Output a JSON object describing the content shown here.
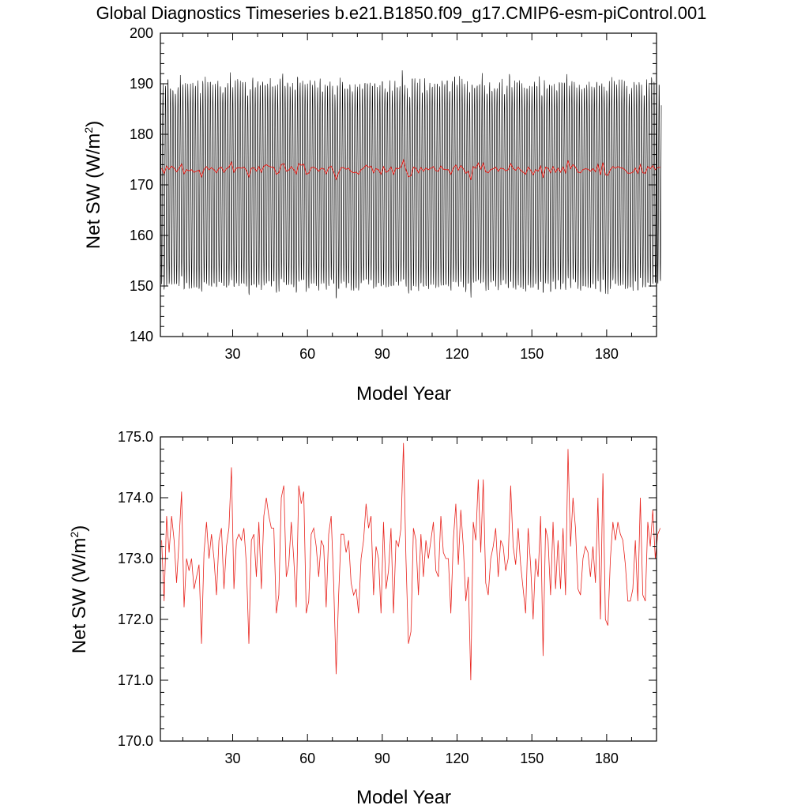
{
  "title": "Global Diagnostics Timeseries b.e21.B1850.f09_g17.CMIP6-esm-piControl.001",
  "colors": {
    "monthly": "#000000",
    "annual": "#e8231d",
    "axis": "#000000",
    "background": "#ffffff"
  },
  "chart_data": [
    {
      "type": "line",
      "title": "Global Diagnostics Timeseries b.e21.B1850.f09_g17.CMIP6-esm-piControl.001",
      "xlabel": "Model Year",
      "ylabel_main": "Net SW (W/m",
      "ylabel_sup": "2",
      "ylabel_tail": ")",
      "xlim": [
        1,
        200
      ],
      "ylim": [
        140,
        200
      ],
      "xticks": [
        30,
        60,
        90,
        120,
        150,
        180
      ],
      "xtick_labels": [
        "30",
        "60",
        "90",
        "120",
        "150",
        "180"
      ],
      "yticks": [
        140,
        150,
        160,
        170,
        180,
        190,
        200
      ],
      "ytick_labels": [
        "140",
        "150",
        "160",
        "170",
        "180",
        "190",
        "200"
      ],
      "grid": false,
      "monthly_annual_cycle": {
        "mean": 170.0,
        "max_typical": 190.0,
        "min_typical": 149.5,
        "max_extreme": 193.3,
        "min_extreme": 146.2
      },
      "series": [
        {
          "key": "monthly",
          "color": "#000000"
        },
        {
          "key": "annual",
          "color": "#e8231d"
        }
      ]
    },
    {
      "type": "line",
      "xlabel": "Model Year",
      "ylabel_main": "Net SW (W/m",
      "ylabel_sup": "2",
      "ylabel_tail": ")",
      "xlim": [
        1,
        200
      ],
      "ylim": [
        170.0,
        175.0
      ],
      "xticks": [
        30,
        60,
        90,
        120,
        150,
        180
      ],
      "xtick_labels": [
        "30",
        "60",
        "90",
        "120",
        "150",
        "180"
      ],
      "yticks": [
        170,
        171,
        172,
        173,
        174,
        175
      ],
      "ytick_labels": [
        "170.0",
        "171.0",
        "172.0",
        "173.0",
        "174.0",
        "175.0"
      ],
      "grid": false,
      "series": [
        {
          "key": "annual",
          "color": "#e8231d"
        }
      ]
    }
  ],
  "annual_mean": {
    "x_start": 1,
    "values": [
      173.3,
      172.3,
      173.7,
      173.1,
      173.7,
      173.3,
      172.6,
      173.3,
      174.1,
      172.2,
      173.0,
      172.8,
      173.0,
      172.5,
      172.7,
      172.9,
      171.6,
      173.1,
      173.6,
      173.0,
      173.4,
      173.0,
      172.4,
      173.3,
      173.5,
      172.5,
      173.2,
      173.5,
      174.5,
      172.5,
      173.3,
      173.4,
      173.3,
      173.5,
      172.9,
      171.6,
      173.3,
      173.4,
      172.7,
      173.6,
      172.5,
      173.7,
      174.0,
      173.7,
      173.5,
      173.5,
      172.1,
      172.4,
      174.0,
      174.2,
      172.7,
      172.9,
      173.6,
      173.0,
      172.2,
      174.2,
      173.9,
      174.1,
      172.1,
      172.3,
      173.4,
      173.5,
      173.2,
      172.7,
      173.3,
      173.2,
      172.2,
      173.4,
      173.7,
      172.6,
      171.1,
      172.4,
      173.4,
      173.4,
      173.1,
      173.3,
      172.6,
      172.4,
      172.5,
      172.1,
      173.0,
      173.3,
      173.9,
      173.5,
      173.7,
      172.4,
      173.2,
      173.0,
      172.1,
      173.6,
      172.5,
      172.8,
      173.5,
      172.1,
      173.3,
      173.2,
      173.5,
      174.9,
      173.0,
      171.6,
      171.8,
      173.5,
      173.3,
      172.4,
      173.4,
      172.7,
      173.3,
      173.0,
      173.3,
      173.6,
      172.8,
      172.7,
      173.7,
      173.1,
      173.0,
      173.0,
      172.1,
      173.3,
      173.9,
      172.9,
      173.8,
      173.2,
      172.3,
      172.7,
      171.0,
      173.6,
      173.3,
      174.3,
      173.1,
      174.3,
      172.6,
      172.4,
      173.0,
      173.2,
      173.5,
      172.7,
      173.3,
      173.2,
      172.8,
      173.0,
      174.2,
      173.2,
      172.9,
      173.5,
      172.9,
      172.5,
      172.1,
      173.5,
      172.9,
      172.0,
      173.0,
      172.7,
      173.7,
      171.4,
      173.5,
      173.3,
      172.4,
      173.6,
      172.5,
      173.3,
      172.5,
      173.5,
      172.4,
      174.8,
      173.2,
      174.0,
      173.5,
      172.5,
      172.4,
      173.0,
      173.2,
      173.1,
      172.7,
      173.2,
      172.6,
      174.0,
      172.0,
      174.4,
      172.0,
      171.9,
      173.0,
      173.6,
      173.3,
      173.6,
      173.4,
      173.3,
      172.9,
      172.3,
      172.3,
      172.5,
      173.3,
      172.3,
      174.0,
      172.4,
      172.3,
      173.6,
      173.2,
      173.8,
      173.0,
      173.4,
      173.5
    ]
  }
}
